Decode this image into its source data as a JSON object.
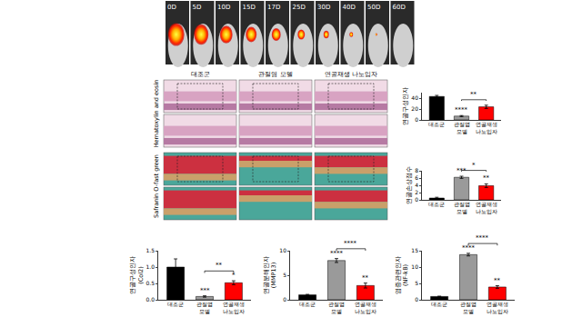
{
  "ivis": {
    "days": [
      "0D",
      "5D",
      "10D",
      "15D",
      "17D",
      "25D",
      "30D",
      "40D",
      "50D",
      "60D"
    ]
  },
  "histology": {
    "columns": [
      "대조군",
      "관절염 모델",
      "연골재생 나노입자"
    ],
    "rows": [
      "Hematoxylin and eosin",
      "Safranin O-fast green"
    ]
  },
  "chart_data": [
    {
      "type": "bar",
      "y_label": "연골구성인자",
      "categories": [
        "대조군",
        "관절염 모델",
        "연골재생 나노입자"
      ],
      "values": [
        43,
        7,
        24
      ],
      "errors": [
        2,
        1,
        3
      ],
      "colors": [
        "#000000",
        "#9a9a9a",
        "#ff0000"
      ],
      "ylim": [
        0,
        50
      ],
      "yticks": [
        0,
        20,
        40
      ],
      "annotations": [
        {
          "x": 1,
          "text": "****"
        }
      ],
      "brackets": [
        {
          "from": 1,
          "to": 2,
          "text": "**"
        }
      ]
    },
    {
      "type": "bar",
      "y_label": "연골손상점수",
      "categories": [
        "대조군",
        "관절염 모델",
        "연골재생 나노입자"
      ],
      "values": [
        0.5,
        6.2,
        3.9
      ],
      "errors": [
        0.2,
        0.3,
        0.5
      ],
      "colors": [
        "#000000",
        "#9a9a9a",
        "#ff0000"
      ],
      "ylim": [
        0,
        8
      ],
      "yticks": [
        0,
        2,
        4,
        6,
        8
      ],
      "annotations": [
        {
          "x": 1,
          "text": "***"
        },
        {
          "x": 2,
          "text": "**"
        }
      ],
      "brackets": [
        {
          "from": 1,
          "to": 2,
          "text": "*"
        }
      ]
    },
    {
      "type": "bar",
      "y_label": "연골구성인자 (Col2)",
      "categories": [
        "대조군",
        "관절염 모델",
        "연골재생 나노입자"
      ],
      "values": [
        1.0,
        0.1,
        0.52
      ],
      "errors": [
        0.25,
        0.02,
        0.06
      ],
      "colors": [
        "#000000",
        "#9a9a9a",
        "#ff0000"
      ],
      "ylim": [
        0,
        1.5
      ],
      "yticks": [
        {
          "value": 0,
          "label": "0.0"
        },
        {
          "value": 0.5,
          "label": "0.5"
        },
        {
          "value": 1,
          "label": "1.0"
        },
        {
          "value": 1.5,
          "label": "1.5"
        }
      ],
      "annotations": [
        {
          "x": 1,
          "text": "***"
        },
        {
          "x": 2,
          "text": "*"
        }
      ],
      "brackets": [
        {
          "from": 1,
          "to": 2,
          "text": "**"
        }
      ]
    },
    {
      "type": "bar",
      "y_label": "연골분해인자 (MMP13)",
      "categories": [
        "대조군",
        "관절염 모델",
        "연골재생 나노입자"
      ],
      "values": [
        1.0,
        8.0,
        2.9
      ],
      "errors": [
        0.1,
        0.4,
        0.5
      ],
      "colors": [
        "#000000",
        "#9a9a9a",
        "#ff0000"
      ],
      "ylim": [
        0,
        10
      ],
      "yticks": [
        0,
        5,
        10
      ],
      "annotations": [
        {
          "x": 1,
          "text": "****"
        },
        {
          "x": 2,
          "text": "**"
        }
      ],
      "brackets": [
        {
          "from": 1,
          "to": 2,
          "text": "****"
        }
      ]
    },
    {
      "type": "bar",
      "y_label": "염증관련인자 (NF-kB)",
      "categories": [
        "대조군",
        "관절염 모델",
        "연골재생 나노입자"
      ],
      "values": [
        1.0,
        13.8,
        3.9
      ],
      "errors": [
        0.1,
        0.4,
        0.4
      ],
      "colors": [
        "#000000",
        "#9a9a9a",
        "#ff0000"
      ],
      "ylim": [
        0,
        15
      ],
      "yticks": [
        0,
        5,
        10,
        15
      ],
      "annotations": [
        {
          "x": 1,
          "text": "****"
        },
        {
          "x": 2,
          "text": "**"
        }
      ],
      "brackets": [
        {
          "from": 1,
          "to": 2,
          "text": "****"
        }
      ]
    }
  ]
}
